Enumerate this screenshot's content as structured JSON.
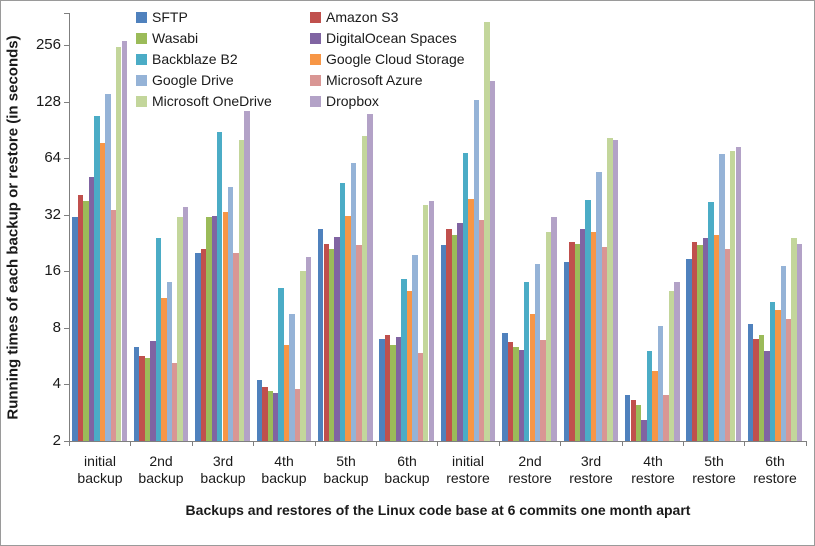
{
  "chart_data": {
    "type": "bar",
    "scale": "log2",
    "xlabel": "Backups and restores of the Linux code base at 6 commits one month apart",
    "ylabel": "Running times of each backup or restore (in seconds)",
    "y_ticks": [
      2,
      4,
      8,
      16,
      32,
      64,
      128,
      256
    ],
    "ylim": [
      2,
      360
    ],
    "grid": "off",
    "legend_position": "top-left, two columns, column order interleaved",
    "categories": [
      "initial backup",
      "2nd backup",
      "3rd backup",
      "4th backup",
      "5th backup",
      "6th backup",
      "initial restore",
      "2nd restore",
      "3rd restore",
      "4th restore",
      "5th restore",
      "6th restore"
    ],
    "series": [
      {
        "name": "SFTP",
        "color": "#4F81BD",
        "values": [
          31,
          6.3,
          20,
          4.2,
          27,
          7.0,
          22,
          7.5,
          18,
          3.5,
          18.5,
          8.4
        ]
      },
      {
        "name": "Amazon S3",
        "color": "#C0504D",
        "values": [
          41,
          5.7,
          21,
          3.9,
          22.5,
          7.3,
          27,
          6.7,
          23,
          3.3,
          23,
          7.0
        ]
      },
      {
        "name": "Wasabi",
        "color": "#9BBB59",
        "values": [
          38,
          5.5,
          31,
          3.7,
          21,
          6.5,
          25,
          6.3,
          22.5,
          3.1,
          22,
          7.3
        ]
      },
      {
        "name": "DigitalOcean Spaces",
        "color": "#8064A2",
        "values": [
          51,
          6.8,
          31.5,
          3.6,
          24.5,
          7.2,
          29,
          6.1,
          27,
          2.6,
          24,
          6.0
        ]
      },
      {
        "name": "Backblaze B2",
        "color": "#4BACC6",
        "values": [
          107,
          24,
          88,
          13,
          47,
          14.5,
          68,
          14,
          38.5,
          6.0,
          37.5,
          11
        ]
      },
      {
        "name": "Google Cloud Storage",
        "color": "#F79646",
        "values": [
          77,
          11.5,
          33,
          6.5,
          31.5,
          12.5,
          39,
          9.5,
          26,
          4.7,
          25,
          10
        ]
      },
      {
        "name": "Google Drive",
        "color": "#95B3D7",
        "values": [
          140,
          14,
          45,
          9.5,
          60,
          19.5,
          130,
          17.5,
          54,
          8.2,
          67,
          17
        ]
      },
      {
        "name": "Microsoft Azure",
        "color": "#D99694",
        "values": [
          34,
          5.2,
          20,
          3.8,
          22,
          5.9,
          30,
          6.9,
          21.5,
          3.5,
          21,
          8.9
        ]
      },
      {
        "name": "Microsoft OneDrive",
        "color": "#C3D69B",
        "values": [
          250,
          31,
          80,
          16,
          84,
          36,
          340,
          26,
          82,
          12.5,
          70,
          24
        ]
      },
      {
        "name": "Dropbox",
        "color": "#B3A2C7",
        "values": [
          270,
          35,
          114,
          19,
          110,
          38,
          165,
          31,
          80,
          14,
          73,
          22.5
        ]
      }
    ]
  }
}
